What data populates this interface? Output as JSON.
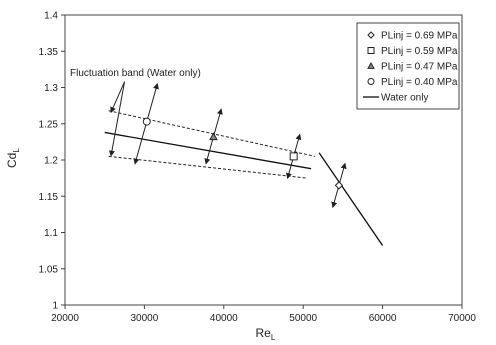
{
  "chart_data": {
    "type": "scatter",
    "xlabel": "Re",
    "xlabel_sub": "L",
    "ylabel": "Cd",
    "ylabel_sub": "L",
    "xlim": [
      20000,
      70000
    ],
    "ylim": [
      1.0,
      1.4
    ],
    "xticks": [
      20000,
      30000,
      40000,
      50000,
      60000,
      70000
    ],
    "yticks": [
      1.0,
      1.05,
      1.1,
      1.15,
      1.2,
      1.25,
      1.3,
      1.35,
      1.4
    ],
    "xtick_labels": [
      "20000",
      "30000",
      "40000",
      "50000",
      "60000",
      "70000"
    ],
    "ytick_labels": [
      "1",
      "1.05",
      "1.1",
      "1.15",
      "1.2",
      "1.25",
      "1.3",
      "1.35",
      "1.4"
    ],
    "grid": false,
    "legend_position": "top-right",
    "series": [
      {
        "name": "PLinj = 0.69 MPa",
        "marker": "diamond",
        "points": [
          {
            "x": 54500,
            "y": 1.165,
            "ylow": 1.135,
            "yhigh": 1.195
          }
        ]
      },
      {
        "name": "PLinj = 0.59 MPa",
        "marker": "square",
        "points": [
          {
            "x": 48800,
            "y": 1.205,
            "ylow": 1.175,
            "yhigh": 1.235
          }
        ]
      },
      {
        "name": "PLinj = 0.47 MPa",
        "marker": "triangle",
        "points": [
          {
            "x": 38700,
            "y": 1.232,
            "ylow": 1.195,
            "yhigh": 1.27
          }
        ]
      },
      {
        "name": "PLinj = 0.40 MPa",
        "marker": "circle",
        "points": [
          {
            "x": 30300,
            "y": 1.253,
            "ylow": 1.195,
            "yhigh": 1.305
          }
        ]
      },
      {
        "name": "Water only",
        "marker": "line",
        "segments": [
          {
            "x1": 25000,
            "y1": 1.238,
            "x2": 51000,
            "y2": 1.188
          },
          {
            "x1": 52000,
            "y1": 1.21,
            "x2": 60000,
            "y2": 1.082
          }
        ]
      }
    ],
    "fluctuation_band": {
      "upper": {
        "x1": 25500,
        "y1": 1.268,
        "x2": 51500,
        "y2": 1.205
      },
      "lower": {
        "x1": 25500,
        "y1": 1.205,
        "x2": 50500,
        "y2": 1.175
      }
    },
    "annotations": [
      {
        "text": "Fluctuation band (Water only)",
        "x": 22000,
        "y": 1.32,
        "arrows": [
          {
            "x1": 27500,
            "y1": 1.308,
            "x2": 25800,
            "y2": 1.266
          },
          {
            "x1": 27500,
            "y1": 1.308,
            "x2": 25800,
            "y2": 1.206
          }
        ]
      }
    ]
  }
}
